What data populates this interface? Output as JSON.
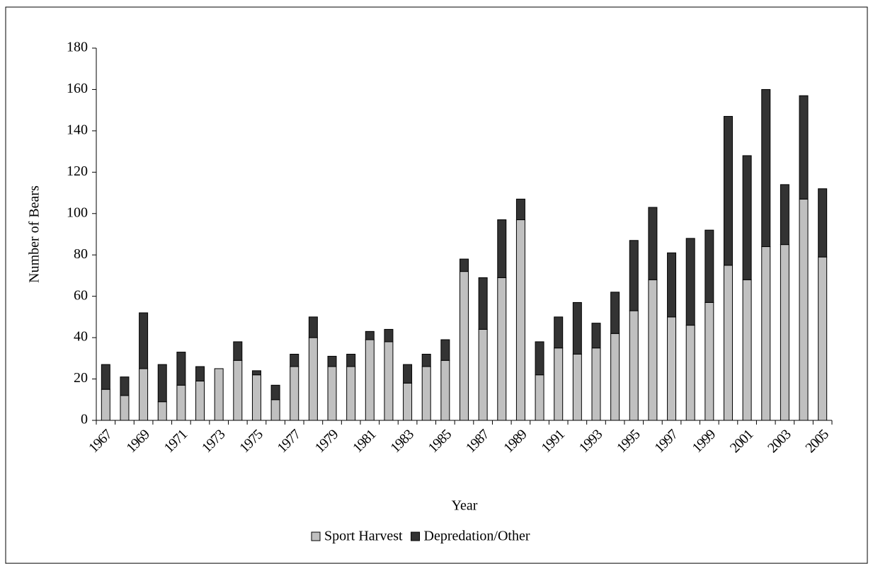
{
  "chart_data": {
    "type": "stacked_bar",
    "xlabel": "Year",
    "ylabel": "Number of Bears",
    "categories": [
      "1967",
      null,
      "1969",
      null,
      "1971",
      null,
      "1973",
      null,
      "1975",
      null,
      "1977",
      null,
      "1979",
      null,
      "1981",
      null,
      "1983",
      null,
      "1985",
      null,
      "1987",
      null,
      "1989",
      null,
      "1991",
      null,
      "1993",
      null,
      "1995",
      null,
      "1997",
      null,
      "1999",
      null,
      "2001",
      null,
      "2003",
      null,
      "2005"
    ],
    "series": [
      {
        "name": "Sport Harvest",
        "color": "#c0c0c0",
        "values": [
          15,
          12,
          25,
          9,
          17,
          19,
          25,
          29,
          22,
          10,
          26,
          40,
          26,
          26,
          39,
          38,
          18,
          26,
          29,
          72,
          44,
          69,
          97,
          22,
          35,
          32,
          35,
          42,
          53,
          68,
          50,
          46,
          57,
          75,
          68,
          84,
          85,
          107,
          79
        ]
      },
      {
        "name": "Depredation/Other",
        "color": "#333333",
        "values": [
          12,
          9,
          27,
          18,
          16,
          7,
          0,
          9,
          2,
          7,
          6,
          10,
          5,
          6,
          4,
          6,
          9,
          6,
          10,
          6,
          25,
          28,
          10,
          16,
          15,
          25,
          12,
          20,
          34,
          35,
          31,
          42,
          35,
          72,
          60,
          76,
          29,
          50,
          33
        ]
      }
    ],
    "ylim": [
      0,
      180
    ],
    "yticks": [
      0,
      20,
      40,
      60,
      80,
      100,
      120,
      140,
      160,
      180
    ],
    "legend": "bottom"
  }
}
